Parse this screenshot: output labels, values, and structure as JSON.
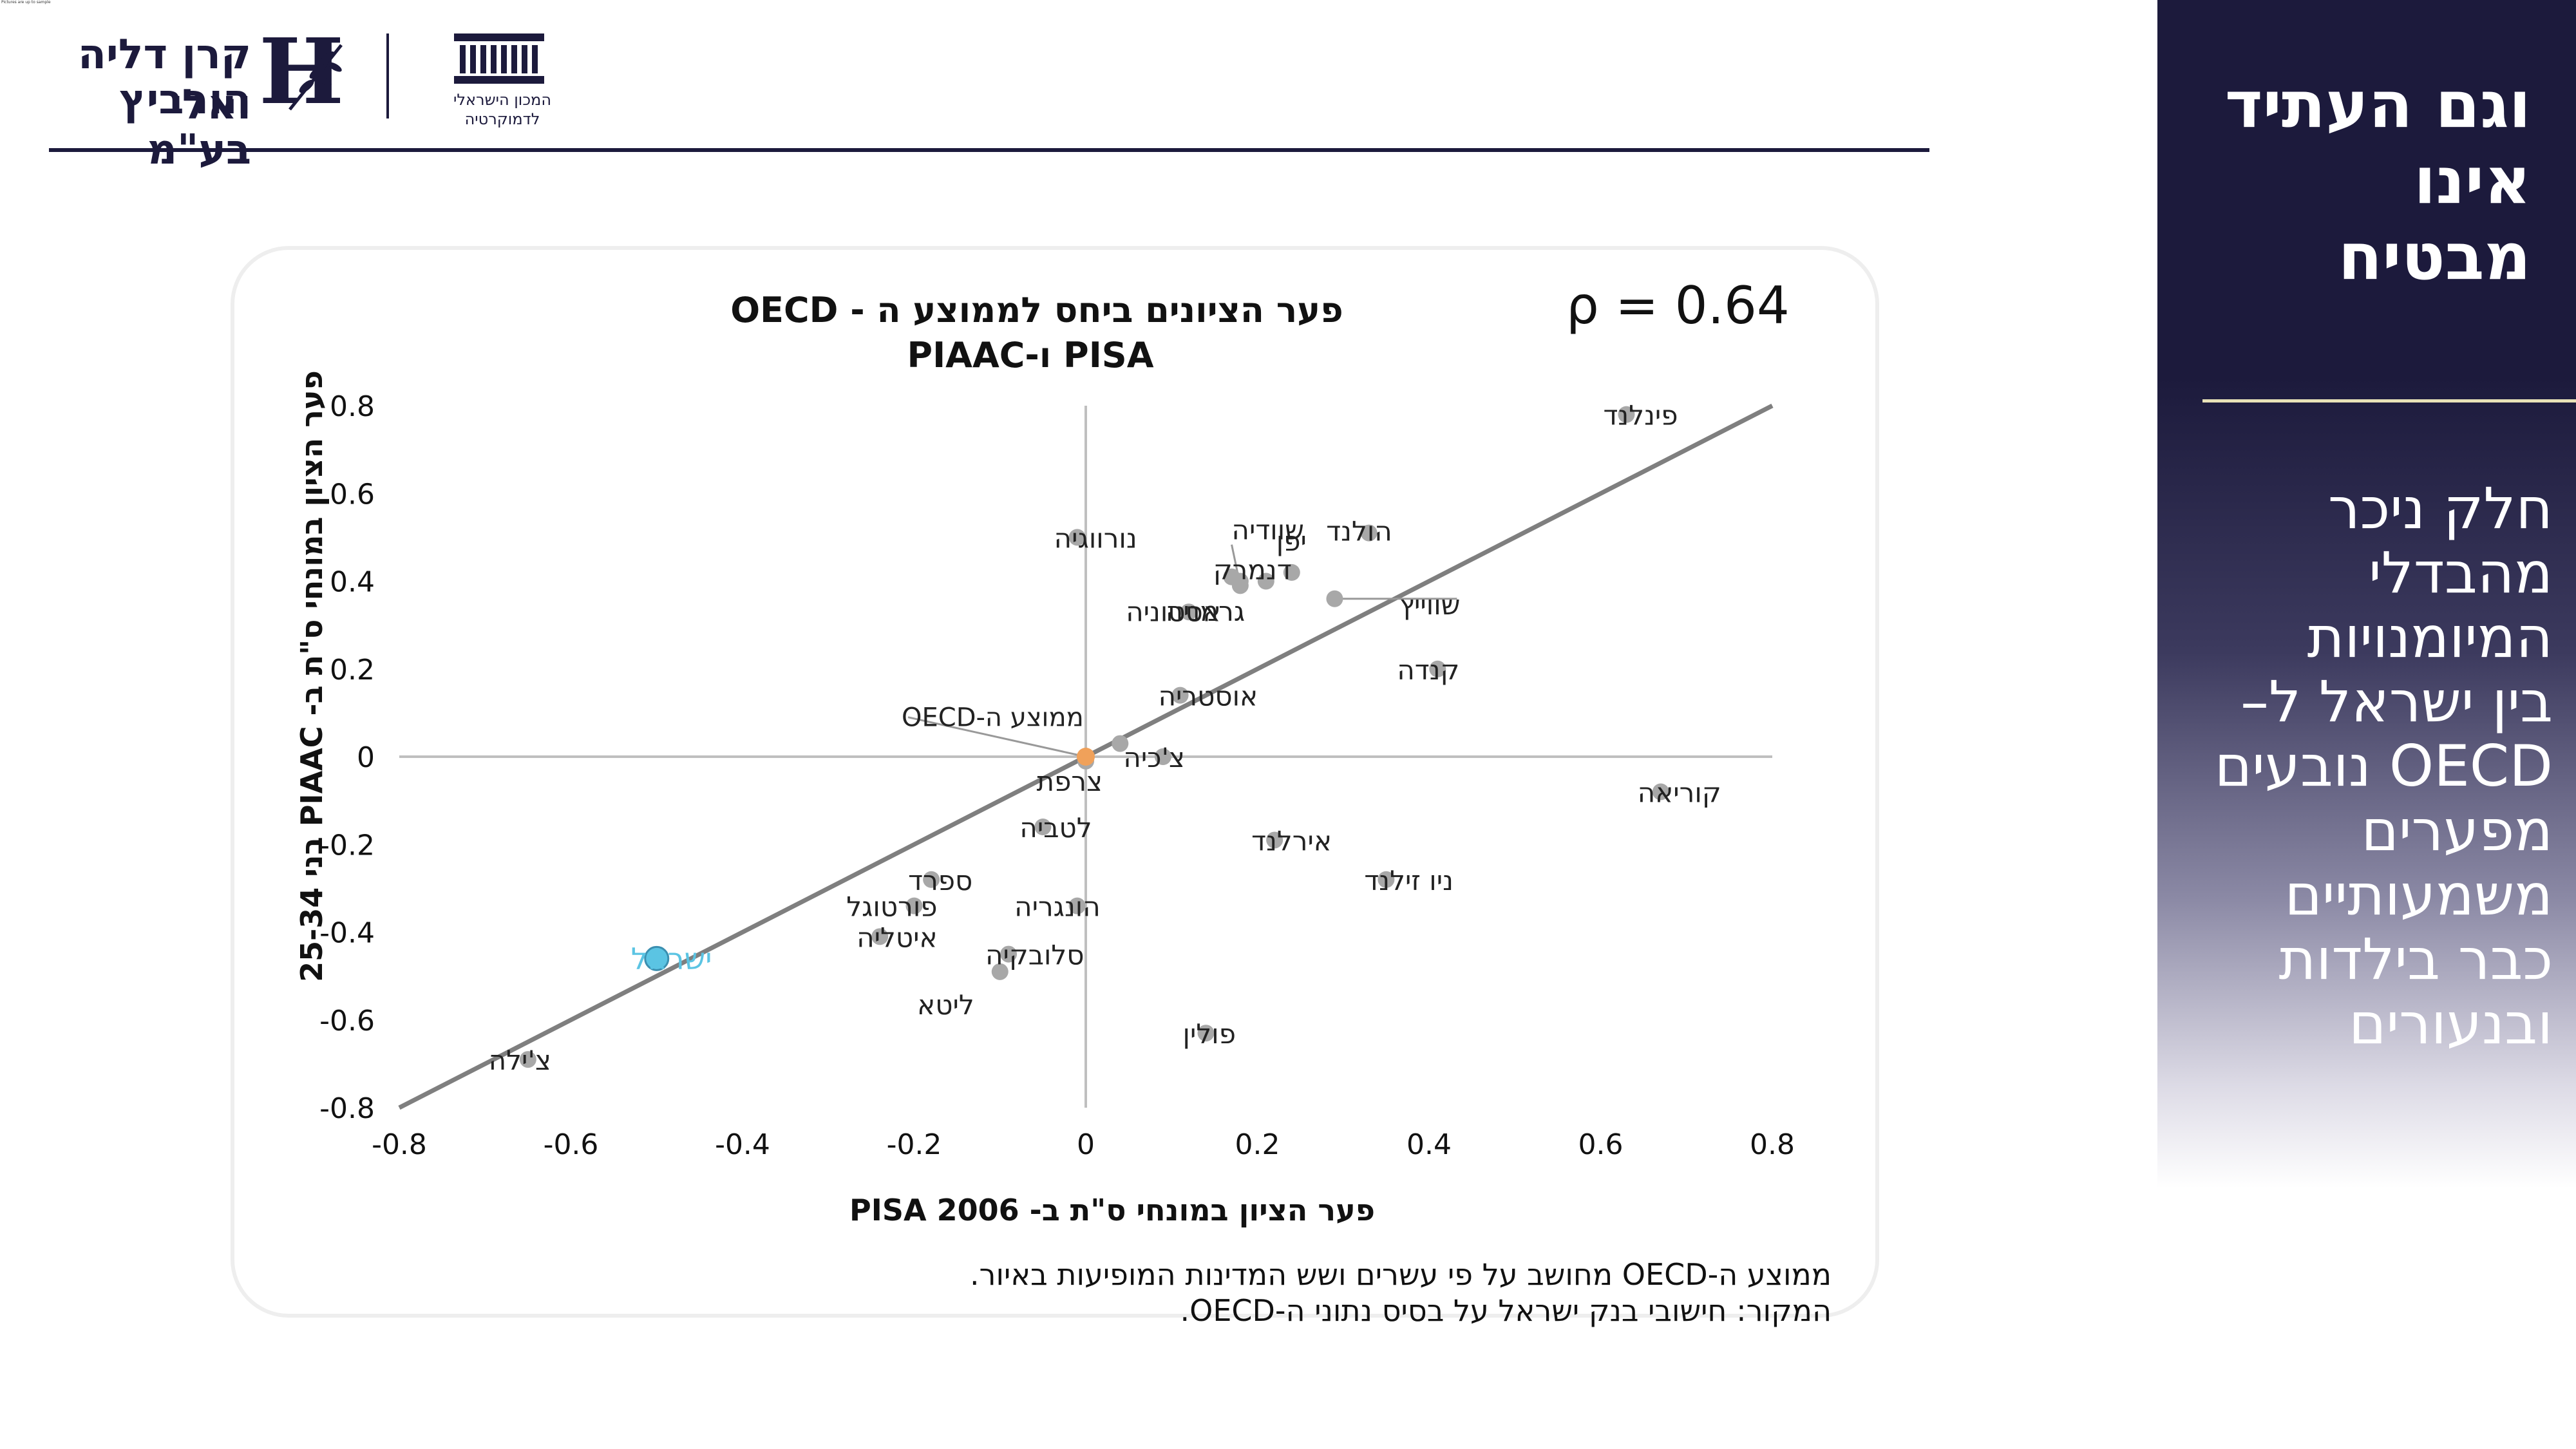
{
  "header": {
    "tiny_caption": "Pictures are up to sample",
    "org1_line1": "קרן דליה ואלי",
    "org1_line2": "הורביץ בע\"מ",
    "org1_monogram": "H",
    "org2_line1": "המכון הישראלי",
    "org2_line2": "לדמוקרטיה",
    "icons": [
      "olive-branch-icon",
      "institute-columns-icon"
    ]
  },
  "chart_data": {
    "type": "scatter",
    "title_line1": "פער הציונים ביחס לממוצע ה - OECD",
    "title_line2": "PISA ו-PIAAC",
    "xlabel": "פער הציון במונחי ס\"ת ב- PISA 2006",
    "ylabel": "פער הציון במונחי ס\"ת ב- PIAAC בני 25-34",
    "correlation_label": "ρ = 0.64",
    "xlim": [
      -0.8,
      0.8
    ],
    "ylim": [
      -0.8,
      0.8
    ],
    "x_ticks": [
      "-0.8",
      "-0.6",
      "-0.4",
      "-0.2",
      "0",
      "0.2",
      "0.4",
      "0.6",
      "0.8"
    ],
    "y_ticks": [
      "0.8",
      "0.6",
      "0.4",
      "0.2",
      "0",
      "-0.2",
      "-0.4",
      "-0.6",
      "-0.8"
    ],
    "trendline": {
      "x": [
        -0.8,
        0.8
      ],
      "y": [
        -0.8,
        0.8
      ]
    },
    "colors": {
      "point": "#a8a8a8",
      "israel": "#5bc4e3",
      "oecd_average": "#f0a15a",
      "trendline": "#7f7f7f",
      "axis": "#bfbfbf"
    },
    "points": [
      {
        "label": "פינלנד",
        "x": 0.63,
        "y": 0.78
      },
      {
        "label": "הולנד",
        "x": 0.33,
        "y": 0.51
      },
      {
        "label": "יפן",
        "x": 0.24,
        "y": 0.42
      },
      {
        "label": "שוודיה",
        "x": 0.17,
        "y": 0.41
      },
      {
        "label": "דנמרק",
        "x": 0.18,
        "y": 0.39
      },
      {
        "label": "",
        "x": 0.21,
        "y": 0.4
      },
      {
        "label": "שווייץ",
        "x": 0.29,
        "y": 0.36
      },
      {
        "label": "אסטוניה",
        "x": 0.18,
        "y": 0.4
      },
      {
        "label": "גרמניה",
        "x": 0.12,
        "y": 0.33
      },
      {
        "label": "נורווגיה",
        "x": -0.01,
        "y": 0.5
      },
      {
        "label": "קנדה",
        "x": 0.41,
        "y": 0.2
      },
      {
        "label": "אוסטריה",
        "x": 0.11,
        "y": 0.14
      },
      {
        "label": "",
        "x": 0.04,
        "y": 0.03
      },
      {
        "label": "צ'כיה",
        "x": 0.09,
        "y": 0.0
      },
      {
        "label": "צרפת",
        "x": 0.0,
        "y": -0.01
      },
      {
        "label": "קוריאה",
        "x": 0.67,
        "y": -0.08
      },
      {
        "label": "לטביה",
        "x": -0.05,
        "y": -0.16
      },
      {
        "label": "אירלנד",
        "x": 0.22,
        "y": -0.19
      },
      {
        "label": "ניו זילנד",
        "x": 0.35,
        "y": -0.28
      },
      {
        "label": "ספרד",
        "x": -0.18,
        "y": -0.28
      },
      {
        "label": "פורטוגל",
        "x": -0.2,
        "y": -0.34
      },
      {
        "label": "הונגריה",
        "x": -0.01,
        "y": -0.34
      },
      {
        "label": "איטליה",
        "x": -0.24,
        "y": -0.41
      },
      {
        "label": "סלובקיה",
        "x": -0.09,
        "y": -0.45
      },
      {
        "label": "ליטא",
        "x": -0.1,
        "y": -0.49
      },
      {
        "label": "פולין",
        "x": 0.14,
        "y": -0.63
      },
      {
        "label": "צ'ילה",
        "x": -0.65,
        "y": -0.69
      }
    ],
    "highlight_israel": {
      "label": "ישראל",
      "x": -0.5,
      "y": -0.46
    },
    "oecd_average": {
      "label": "ממוצע ה-OECD",
      "x": 0.0,
      "y": 0.0
    }
  },
  "notes": {
    "line1": "ממוצע ה-OECD מחושב על פי עשרים ושש המדינות המופיעות באיור.",
    "line2": "המקור: חישובי בנק ישראל על בסיס נתוני ה-OECD."
  },
  "side_panel": {
    "title_lines": [
      "וגם העתיד",
      "אינו",
      "מבטיח"
    ],
    "body_lines": [
      "חלק ניכר",
      "מהבדלי",
      "המיומנויות",
      "בין ישראל ל–",
      "OECD נובעים",
      "מפערים",
      "משמעותיים",
      "כבר בילדות",
      "ובנעורים"
    ]
  }
}
